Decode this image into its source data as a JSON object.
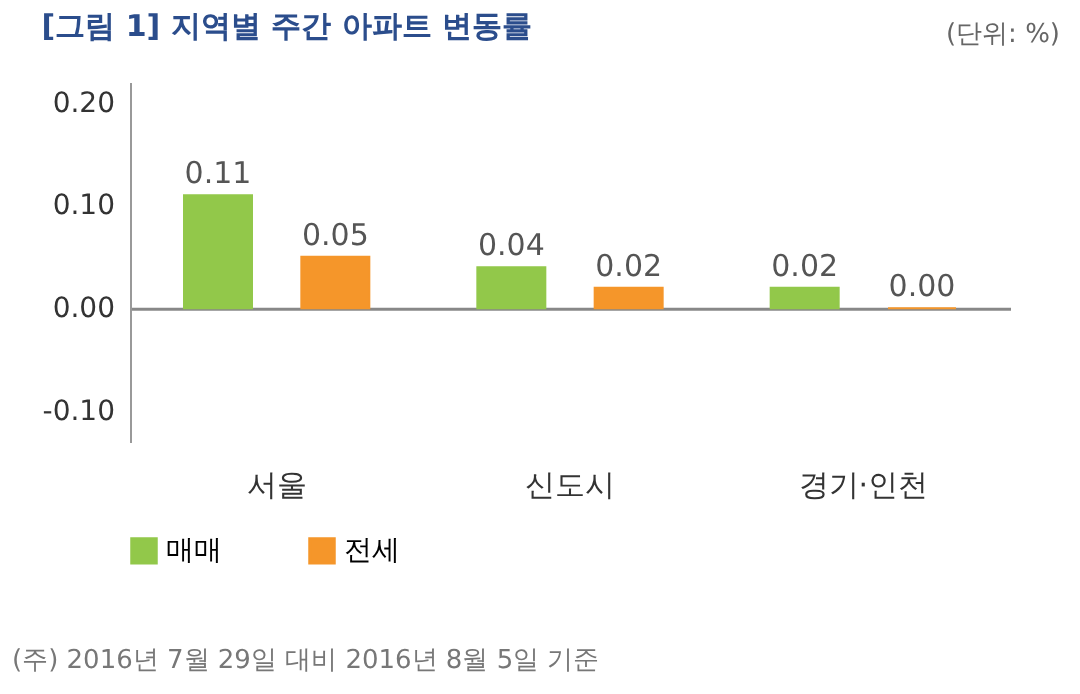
{
  "chart_data": {
    "type": "bar",
    "title": "[그림 1] 지역별 주간 아파트 변동률",
    "categories": [
      "서울",
      "신도시",
      "경기·인천"
    ],
    "series": [
      {
        "name": "매매",
        "color": "#92c84a",
        "values": [
          0.11,
          0.04,
          0.02
        ],
        "value_labels": [
          "0.11",
          "0.04",
          "0.02"
        ]
      },
      {
        "name": "전세",
        "color": "#f5962a",
        "values": [
          0.05,
          0.02,
          0.0
        ],
        "value_labels": [
          "0.05",
          "0.02",
          "0.00"
        ]
      }
    ],
    "ylim": [
      -0.13,
      0.22
    ],
    "yticks": [
      {
        "value": -0.1,
        "label": "-0.10"
      },
      {
        "value": 0,
        "label": "0.00"
      },
      {
        "value": 0.1,
        "label": "0.10"
      },
      {
        "value": 0.2,
        "label": "0.20"
      }
    ],
    "legend": "bottom",
    "annotations": [
      "(단위: %)",
      "(주) 2016년 7월 29일 대비 2016년 8월 5일 기준"
    ]
  }
}
